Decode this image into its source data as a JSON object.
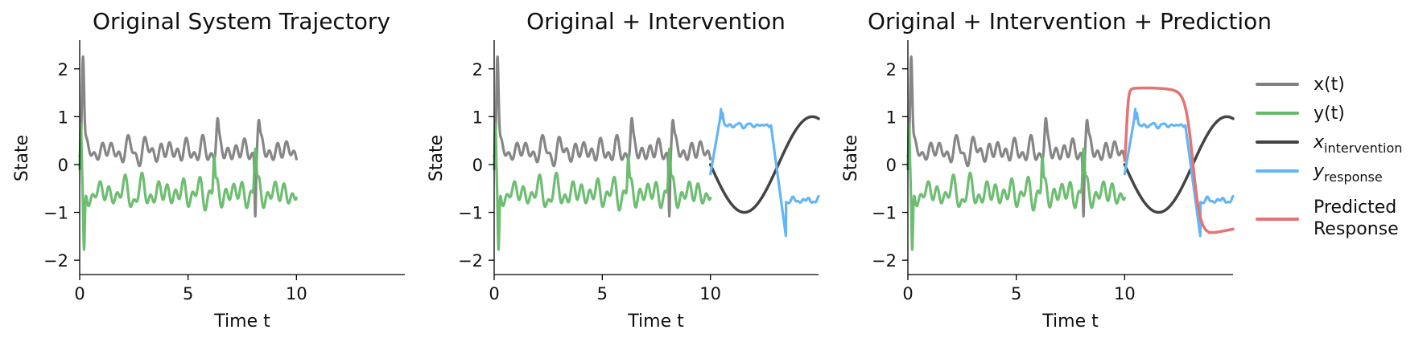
{
  "colors": {
    "x": "#808080",
    "y": "#66bb6a",
    "x_intervention": "#444444",
    "y_response": "#64b5f6",
    "predicted": "#e57373"
  },
  "legend": {
    "x": "x(t)",
    "y": "y(t)",
    "x_intervention_base": "x",
    "x_intervention_sub": "intervention",
    "y_response_base": "y",
    "y_response_sub": "response",
    "predicted_line1": "Predicted",
    "predicted_line2": "Response"
  },
  "chart_data": [
    {
      "type": "line",
      "title": "Original System Trajectory",
      "xlabel": "Time t",
      "ylabel": "State",
      "xlim": [
        0,
        15
      ],
      "ylim": [
        -2.3,
        2.6
      ],
      "xticks": [
        0,
        5,
        10
      ],
      "yticks": [
        -2,
        -1,
        0,
        1,
        2
      ],
      "xtick_labels": [
        "0",
        "5",
        "10"
      ],
      "ytick_labels": [
        "−2",
        "−1",
        "0",
        "1",
        "2"
      ],
      "series": [
        {
          "name": "x(t)",
          "key": "x",
          "t_range": [
            0,
            10
          ],
          "approx": "oscillating around 0.3 with amplitude ~0.3, initial spike to 2.35 at t≈0.15"
        },
        {
          "name": "y(t)",
          "key": "y",
          "t_range": [
            0,
            10
          ],
          "approx": "oscillating around -0.6 with amplitude ~0.35, initial dip to -2.05 at t≈0.2"
        }
      ]
    },
    {
      "type": "line",
      "title": "Original + Intervention",
      "xlabel": "Time t",
      "ylabel": "State",
      "xlim": [
        0,
        15
      ],
      "ylim": [
        -2.3,
        2.6
      ],
      "xticks": [
        0,
        5,
        10
      ],
      "yticks": [
        -2,
        -1,
        0,
        1,
        2
      ],
      "xtick_labels": [
        "0",
        "5",
        "10"
      ],
      "ytick_labels": [
        "−2",
        "−1",
        "0",
        "1",
        "2"
      ],
      "series": [
        {
          "name": "x(t)",
          "key": "x",
          "t_range": [
            0,
            10
          ]
        },
        {
          "name": "y(t)",
          "key": "y",
          "t_range": [
            0,
            10
          ]
        },
        {
          "name": "x_intervention",
          "key": "xi",
          "t_range": [
            10,
            15
          ],
          "approx": "-sin(t-10): 0 → -1 at t≈11 → 1 at t≈14.4"
        },
        {
          "name": "y_response",
          "key": "yr",
          "t_range": [
            10,
            15
          ],
          "approx": "rises to ~1.1 at t≈10.5, stays ~0.8 until t≈12.8, drops to ~-1.5 at t≈13.5, then ~-0.7"
        }
      ]
    },
    {
      "type": "line",
      "title": "Original + Intervention + Prediction",
      "xlabel": "Time t",
      "ylabel": "State",
      "xlim": [
        0,
        15
      ],
      "ylim": [
        -2.3,
        2.6
      ],
      "xticks": [
        0,
        5,
        10
      ],
      "yticks": [
        -2,
        -1,
        0,
        1,
        2
      ],
      "xtick_labels": [
        "0",
        "5",
        "10"
      ],
      "ytick_labels": [
        "−2",
        "−1",
        "0",
        "1",
        "2"
      ],
      "series": [
        {
          "name": "x(t)",
          "key": "x",
          "t_range": [
            0,
            10
          ]
        },
        {
          "name": "y(t)",
          "key": "y",
          "t_range": [
            0,
            10
          ]
        },
        {
          "name": "x_intervention",
          "key": "xi",
          "t_range": [
            10,
            15
          ]
        },
        {
          "name": "y_response",
          "key": "yr",
          "t_range": [
            10,
            15
          ]
        },
        {
          "name": "Predicted Response",
          "key": "pred",
          "t_range": [
            10,
            15
          ],
          "approx": "rises from -0.2 to 1.5 by t≈10.3, peaks ~1.6 at t≈11, falls to ~-1.4 at t≈13.8, ends ~-1.35 at t=15"
        }
      ]
    }
  ]
}
